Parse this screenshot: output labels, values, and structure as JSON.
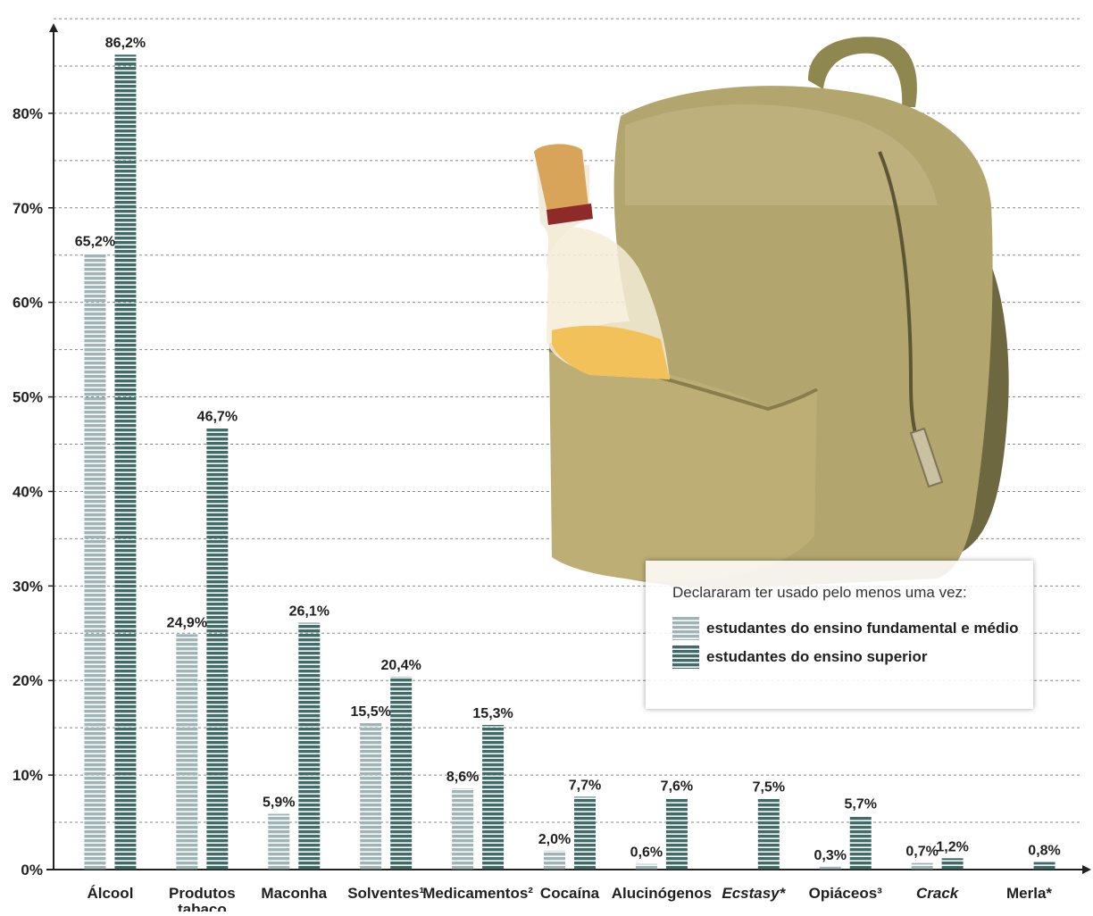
{
  "chart_data": {
    "type": "bar",
    "categories": [
      "Álcool",
      "Produtos tabaco",
      "Maconha",
      "Solventes¹",
      "Medicamentos²",
      "Cocaína",
      "Alucinógenos",
      "Ecstasy*",
      "Opiáceos³",
      "Crack",
      "Merla*"
    ],
    "italic_categories": [
      "Ecstasy*",
      "Crack"
    ],
    "series": [
      {
        "name": "estudantes do ensino fundamental e médio",
        "color": "#9fb4b6",
        "values": [
          65.2,
          24.9,
          5.9,
          15.5,
          8.6,
          2.0,
          0.6,
          null,
          0.3,
          0.7,
          null
        ],
        "labels": [
          "65,2%",
          "24,9%",
          "5,9%",
          "15,5%",
          "8,6%",
          "2,0%",
          "0,6%",
          "",
          "0,3%",
          "0,7%",
          ""
        ]
      },
      {
        "name": "estudantes do ensino superior",
        "color": "#3f6b69",
        "values": [
          86.2,
          46.7,
          26.1,
          20.4,
          15.3,
          7.7,
          7.6,
          7.5,
          5.7,
          1.2,
          0.8
        ],
        "labels": [
          "86,2%",
          "46,7%",
          "26,1%",
          "20,4%",
          "15,3%",
          "7,7%",
          "7,6%",
          "7,5%",
          "5,7%",
          "1,2%",
          "0,8%"
        ]
      }
    ],
    "yticks": [
      "0%",
      "10%",
      "20%",
      "30%",
      "40%",
      "50%",
      "60%",
      "70%",
      "80%"
    ],
    "ylim": [
      0,
      90
    ],
    "grid": true,
    "legend": {
      "title": "Declararam ter usado pelo menos uma vez:",
      "placement": "right"
    }
  }
}
